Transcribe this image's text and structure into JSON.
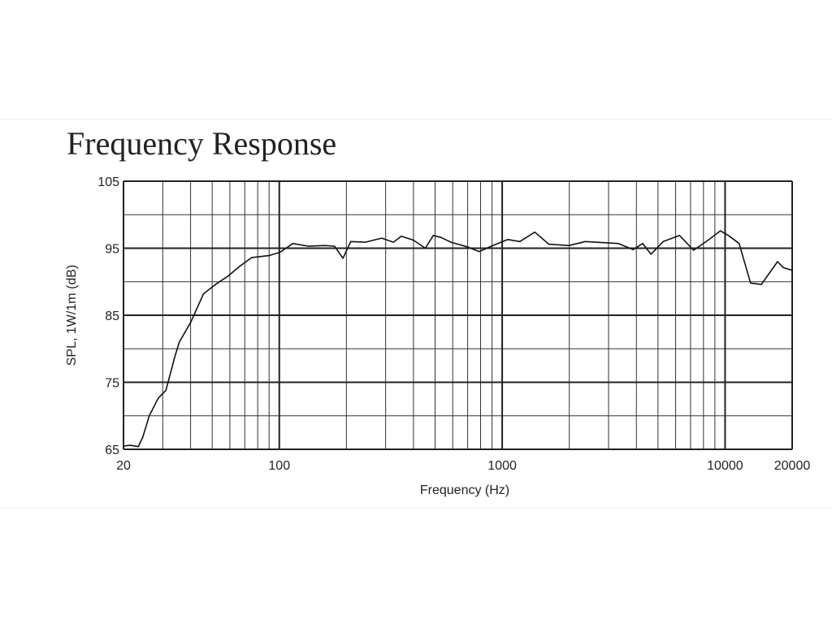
{
  "chart_data": {
    "type": "line",
    "title": "Frequency Response",
    "x_label": "Frequency (Hz)",
    "y_label": "SPL, 1W/1m (dB)",
    "xscale": "log",
    "xlim": [
      20,
      20000
    ],
    "ylim": [
      65,
      105
    ],
    "xticks": [
      20,
      100,
      1000,
      10000,
      20000
    ],
    "yticks": [
      65,
      75,
      85,
      95,
      105
    ],
    "xgrid": [
      30,
      40,
      50,
      60,
      70,
      80,
      90,
      200,
      300,
      400,
      500,
      600,
      700,
      800,
      900,
      2000,
      3000,
      4000,
      5000,
      6000,
      7000,
      8000,
      9000
    ],
    "ygrid": [
      70,
      80,
      90,
      100
    ],
    "color": "#111111",
    "x": [
      20,
      21.4,
      23.3,
      24.4,
      26.1,
      28.6,
      31,
      33.9,
      35.6,
      40.1,
      45.7,
      51.7,
      58.6,
      66.4,
      75,
      89.7,
      101,
      115,
      135,
      160,
      177,
      193,
      209,
      243,
      288,
      325,
      353,
      400,
      452,
      491,
      533,
      589,
      697,
      788,
      894,
      1060,
      1200,
      1400,
      1620,
      1990,
      2360,
      3320,
      3870,
      4270,
      4650,
      5280,
      6250,
      7220,
      8390,
      9520,
      10350,
      11560,
      13010,
      14540,
      17200,
      18250,
      20000
    ],
    "values": [
      65.5,
      65.6,
      65.4,
      66.8,
      70,
      72.6,
      73.8,
      78.7,
      81,
      84,
      88.2,
      89.6,
      90.8,
      92.3,
      93.6,
      93.9,
      94.4,
      95.7,
      95.3,
      95.4,
      95.3,
      93.5,
      96,
      95.9,
      96.5,
      95.9,
      96.8,
      96.2,
      95,
      96.9,
      96.6,
      95.9,
      95.2,
      94.5,
      95.3,
      96.3,
      96,
      97.4,
      95.6,
      95.4,
      96,
      95.7,
      94.8,
      95.7,
      94.1,
      96,
      96.9,
      94.7,
      96.2,
      97.6,
      96.9,
      95.7,
      89.8,
      89.6,
      93,
      92.1,
      91.7
    ]
  }
}
